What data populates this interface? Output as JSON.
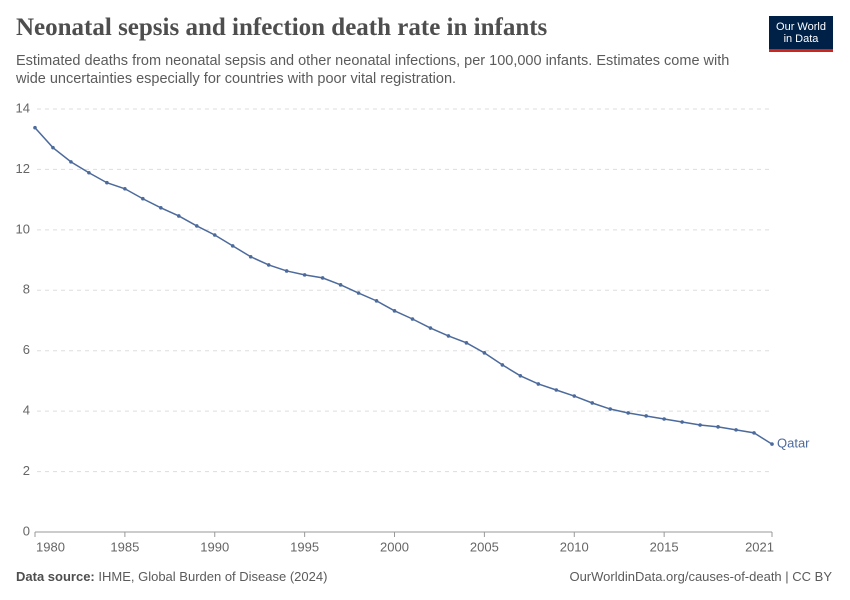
{
  "chart_data": {
    "type": "line",
    "title": "Neonatal sepsis and infection death rate in infants",
    "subtitle": "Estimated deaths from neonatal sepsis and other neonatal infections, per 100,000 infants. Estimates come with wide uncertainties especially for countries with poor vital registration.",
    "x": [
      1980,
      1981,
      1982,
      1983,
      1984,
      1985,
      1986,
      1987,
      1988,
      1989,
      1990,
      1991,
      1992,
      1993,
      1994,
      1995,
      1996,
      1997,
      1998,
      1999,
      2000,
      2001,
      2002,
      2003,
      2004,
      2005,
      2006,
      2007,
      2008,
      2009,
      2010,
      2011,
      2012,
      2013,
      2014,
      2015,
      2016,
      2017,
      2018,
      2019,
      2020,
      2021
    ],
    "series": [
      {
        "name": "Qatar",
        "color": "#4c6a9c",
        "values": [
          13.38,
          12.72,
          12.25,
          11.89,
          11.56,
          11.36,
          11.03,
          10.73,
          10.46,
          10.13,
          9.83,
          9.47,
          9.11,
          8.84,
          8.64,
          8.51,
          8.41,
          8.18,
          7.91,
          7.65,
          7.32,
          7.05,
          6.75,
          6.49,
          6.26,
          5.93,
          5.53,
          5.17,
          4.9,
          4.7,
          4.5,
          4.27,
          4.07,
          3.94,
          3.84,
          3.74,
          3.64,
          3.54,
          3.48,
          3.38,
          3.28,
          2.91
        ]
      }
    ],
    "xlim": [
      1980,
      2021
    ],
    "xticks": [
      1980,
      1985,
      1990,
      1995,
      2000,
      2005,
      2010,
      2015,
      2021
    ],
    "ylim": [
      0,
      14
    ],
    "yticks": [
      0,
      2,
      4,
      6,
      8,
      10,
      12,
      14
    ],
    "grid": true
  },
  "logo": [
    "Our World",
    "in Data"
  ],
  "source_label": "Data source:",
  "source": "IHME, Global Burden of Disease (2024)",
  "url": "OurWorldinData.org/causes-of-death | CC BY"
}
